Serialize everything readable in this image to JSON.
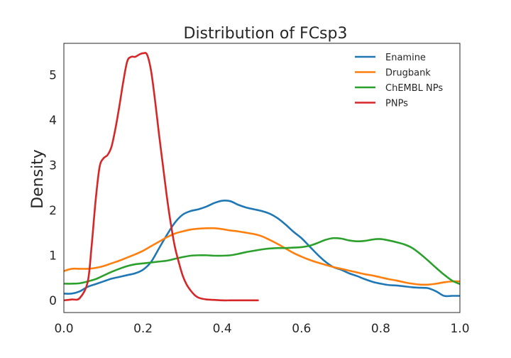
{
  "chart_data": {
    "type": "line",
    "title": "Distribution of FCsp3",
    "xlabel": "",
    "ylabel": "Density",
    "xlim": [
      0.0,
      1.0
    ],
    "ylim": [
      -0.27,
      5.7
    ],
    "xticks": [
      "0.0",
      "0.2",
      "0.4",
      "0.6",
      "0.8",
      "1.0"
    ],
    "yticks": [
      "0",
      "1",
      "2",
      "3",
      "4",
      "5"
    ],
    "grid": false,
    "legend": "top-right",
    "series": [
      {
        "name": "Enamine",
        "color": "#1f77b4",
        "x": [
          0.0,
          0.02,
          0.04,
          0.06,
          0.08,
          0.1,
          0.12,
          0.14,
          0.16,
          0.18,
          0.2,
          0.22,
          0.24,
          0.26,
          0.28,
          0.3,
          0.32,
          0.34,
          0.36,
          0.38,
          0.4,
          0.42,
          0.44,
          0.46,
          0.48,
          0.5,
          0.52,
          0.54,
          0.56,
          0.58,
          0.6,
          0.62,
          0.64,
          0.66,
          0.68,
          0.7,
          0.72,
          0.74,
          0.76,
          0.78,
          0.8,
          0.82,
          0.84,
          0.86,
          0.88,
          0.9,
          0.92,
          0.94,
          0.96,
          0.98,
          1.0
        ],
        "y": [
          0.15,
          0.15,
          0.2,
          0.3,
          0.36,
          0.42,
          0.48,
          0.52,
          0.56,
          0.6,
          0.68,
          0.85,
          1.15,
          1.45,
          1.72,
          1.9,
          1.98,
          2.02,
          2.08,
          2.16,
          2.21,
          2.2,
          2.12,
          2.06,
          2.02,
          1.98,
          1.92,
          1.82,
          1.68,
          1.52,
          1.38,
          1.2,
          1.02,
          0.86,
          0.74,
          0.68,
          0.6,
          0.54,
          0.47,
          0.41,
          0.37,
          0.34,
          0.33,
          0.31,
          0.29,
          0.28,
          0.27,
          0.2,
          0.1,
          0.1,
          0.1
        ]
      },
      {
        "name": "Drugbank",
        "color": "#ff7f0e",
        "x": [
          0.0,
          0.02,
          0.04,
          0.06,
          0.08,
          0.1,
          0.12,
          0.14,
          0.16,
          0.18,
          0.2,
          0.22,
          0.24,
          0.26,
          0.28,
          0.3,
          0.32,
          0.34,
          0.36,
          0.38,
          0.4,
          0.42,
          0.44,
          0.46,
          0.48,
          0.5,
          0.52,
          0.54,
          0.56,
          0.58,
          0.6,
          0.62,
          0.64,
          0.66,
          0.68,
          0.7,
          0.72,
          0.74,
          0.76,
          0.78,
          0.8,
          0.82,
          0.84,
          0.86,
          0.88,
          0.9,
          0.92,
          0.94,
          0.96,
          0.98,
          1.0
        ],
        "y": [
          0.65,
          0.7,
          0.7,
          0.7,
          0.72,
          0.76,
          0.82,
          0.88,
          0.95,
          1.02,
          1.1,
          1.2,
          1.3,
          1.4,
          1.48,
          1.53,
          1.57,
          1.59,
          1.6,
          1.6,
          1.58,
          1.55,
          1.53,
          1.5,
          1.47,
          1.42,
          1.34,
          1.25,
          1.15,
          1.05,
          0.97,
          0.9,
          0.84,
          0.79,
          0.74,
          0.7,
          0.66,
          0.62,
          0.58,
          0.55,
          0.51,
          0.47,
          0.44,
          0.4,
          0.37,
          0.35,
          0.35,
          0.37,
          0.4,
          0.42,
          0.42
        ]
      },
      {
        "name": "ChEMBL NPs",
        "color": "#2ca02c",
        "x": [
          0.0,
          0.02,
          0.04,
          0.06,
          0.08,
          0.1,
          0.12,
          0.14,
          0.16,
          0.18,
          0.2,
          0.22,
          0.24,
          0.26,
          0.28,
          0.3,
          0.32,
          0.34,
          0.36,
          0.38,
          0.4,
          0.42,
          0.44,
          0.46,
          0.48,
          0.5,
          0.52,
          0.54,
          0.56,
          0.58,
          0.6,
          0.62,
          0.64,
          0.66,
          0.68,
          0.7,
          0.72,
          0.74,
          0.76,
          0.78,
          0.8,
          0.82,
          0.84,
          0.86,
          0.88,
          0.9,
          0.92,
          0.94,
          0.96,
          0.98,
          1.0
        ],
        "y": [
          0.37,
          0.37,
          0.38,
          0.42,
          0.47,
          0.55,
          0.63,
          0.7,
          0.76,
          0.8,
          0.82,
          0.84,
          0.86,
          0.88,
          0.92,
          0.96,
          0.99,
          1.0,
          1.0,
          0.99,
          0.99,
          1.0,
          1.03,
          1.07,
          1.1,
          1.13,
          1.15,
          1.16,
          1.16,
          1.17,
          1.18,
          1.21,
          1.27,
          1.34,
          1.38,
          1.37,
          1.33,
          1.31,
          1.32,
          1.35,
          1.36,
          1.33,
          1.29,
          1.24,
          1.16,
          1.03,
          0.88,
          0.72,
          0.57,
          0.44,
          0.36
        ]
      },
      {
        "name": "PNPs",
        "color": "#d62728",
        "x": [
          0.0,
          0.02,
          0.04,
          0.06,
          0.07,
          0.08,
          0.09,
          0.1,
          0.11,
          0.12,
          0.13,
          0.14,
          0.15,
          0.16,
          0.17,
          0.18,
          0.19,
          0.2,
          0.21,
          0.22,
          0.23,
          0.24,
          0.25,
          0.26,
          0.27,
          0.28,
          0.29,
          0.3,
          0.31,
          0.32,
          0.33,
          0.34,
          0.36,
          0.38,
          0.4,
          0.42,
          0.44,
          0.46,
          0.49
        ],
        "y": [
          0.0,
          0.02,
          0.05,
          0.4,
          1.2,
          2.2,
          2.95,
          3.15,
          3.22,
          3.4,
          3.8,
          4.3,
          4.85,
          5.3,
          5.4,
          5.4,
          5.45,
          5.48,
          5.45,
          5.1,
          4.45,
          3.7,
          3.0,
          2.3,
          1.7,
          1.2,
          0.85,
          0.55,
          0.35,
          0.22,
          0.12,
          0.06,
          0.02,
          0.01,
          0.0,
          0.0,
          0.0,
          0.0,
          0.0
        ]
      }
    ]
  }
}
